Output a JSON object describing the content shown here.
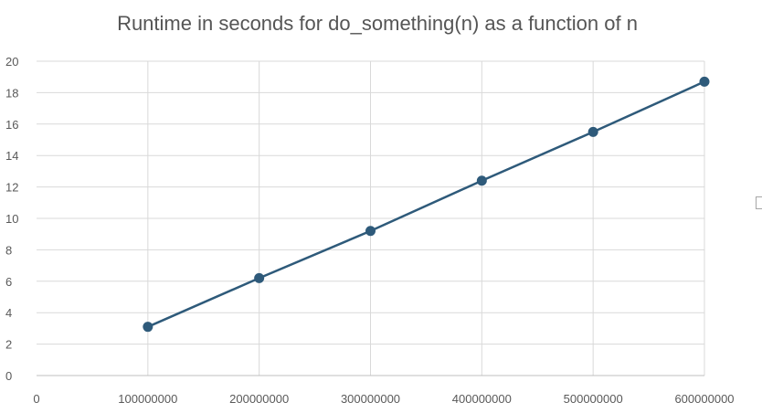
{
  "chart_data": {
    "type": "line",
    "title": "Runtime in seconds for do_something(n)  as a function of n",
    "xlabel": "",
    "ylabel": "",
    "x": [
      100000000,
      200000000,
      300000000,
      400000000,
      500000000,
      600000000
    ],
    "series": [
      {
        "values": [
          3.1,
          6.2,
          9.2,
          12.4,
          15.5,
          18.7
        ]
      }
    ],
    "xlim": [
      0,
      600000000
    ],
    "ylim": [
      0,
      20
    ],
    "x_ticks": [
      "0",
      "100000000",
      "200000000",
      "300000000",
      "400000000",
      "500000000",
      "600000000"
    ],
    "y_ticks": [
      "0",
      "2",
      "4",
      "6",
      "8",
      "10",
      "12",
      "14",
      "16",
      "18",
      "20"
    ],
    "grid": true,
    "legend": "none",
    "colors": {
      "series": "#2e5a7a",
      "grid": "#d9d9d9",
      "title": "#555555",
      "tick_label": "#595959"
    }
  }
}
